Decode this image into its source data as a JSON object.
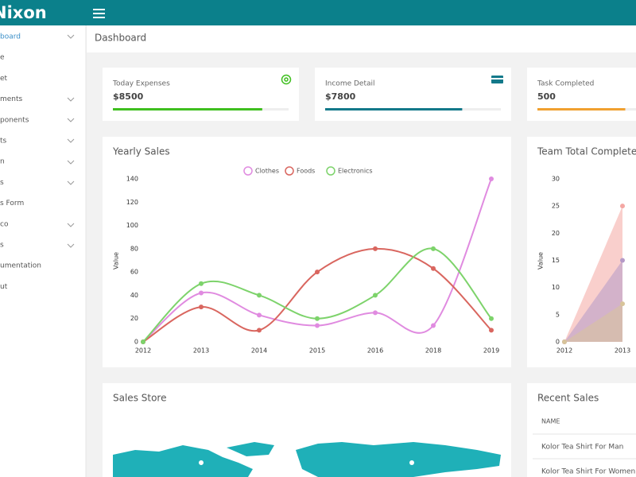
{
  "header": {
    "logo": "Nixon"
  },
  "sidebar": {
    "items": [
      "board",
      "e",
      "et",
      "ments",
      "ponents",
      "ts",
      "n",
      "s",
      "s Form",
      "co",
      "s",
      "umentation",
      "ut"
    ]
  },
  "breadcrumb": "Dashboard",
  "cards": [
    {
      "title": "Today Expenses",
      "value": "$8500",
      "progress": 85,
      "color": "#3fbf1f"
    },
    {
      "title": "Income Detail",
      "value": "$7800",
      "progress": 78,
      "color": "#13798a"
    },
    {
      "title": "Task Completed",
      "value": "500",
      "progress": 50,
      "color": "#f0a030"
    }
  ],
  "chart_data": [
    {
      "type": "line",
      "title": "Yearly Sales",
      "y_label": "Value",
      "categories": [
        "2012",
        "2013",
        "2014",
        "2015",
        "2016",
        "2018",
        "2019"
      ],
      "ylim": [
        0,
        140
      ],
      "yticks": [
        0,
        20,
        40,
        60,
        80,
        100,
        120,
        140
      ],
      "series": [
        {
          "name": "Clothes",
          "color": "#e08be0",
          "values": [
            0,
            42,
            23,
            14,
            25,
            14,
            140
          ]
        },
        {
          "name": "Foods",
          "color": "#d9665f",
          "values": [
            0,
            30,
            10,
            60,
            80,
            63,
            10
          ]
        },
        {
          "name": "Electronics",
          "color": "#7dd36b",
          "values": [
            0,
            50,
            40,
            20,
            40,
            80,
            20
          ]
        }
      ]
    },
    {
      "type": "area",
      "title": "Team Total Completed",
      "y_label": "Value",
      "categories": [
        "2012",
        "2013"
      ],
      "ylim": [
        0,
        30
      ],
      "yticks": [
        0,
        5,
        10,
        15,
        20,
        25,
        30
      ],
      "series": [
        {
          "color": "#f4a7a3",
          "values": [
            0,
            25
          ]
        },
        {
          "color": "#b59ac8",
          "values": [
            0,
            15
          ]
        },
        {
          "color": "#d8c49a",
          "values": [
            0,
            7
          ]
        }
      ]
    }
  ],
  "sales_store": {
    "title": "Sales Store"
  },
  "recent_sales": {
    "title": "Recent Sales",
    "header": "NAME",
    "rows": [
      "Kolor Tea Shirt For Man",
      "Kolor Tea Shirt For Women"
    ]
  }
}
